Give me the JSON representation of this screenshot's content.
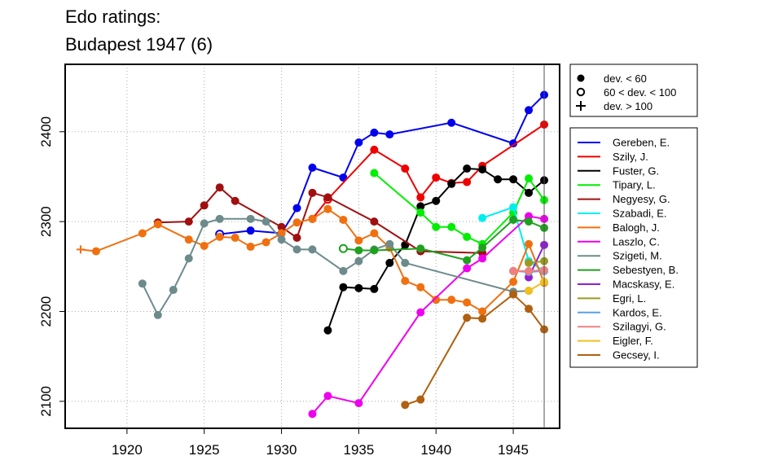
{
  "chart_data": {
    "type": "line",
    "title_lines": [
      "Edo ratings:",
      "Budapest 1947 (6)"
    ],
    "xlim": [
      1916,
      1948
    ],
    "ylim": [
      2070,
      2475
    ],
    "x_ticks": [
      1920,
      1925,
      1930,
      1935,
      1940,
      1945
    ],
    "y_ticks": [
      2100,
      2200,
      2300,
      2400
    ],
    "grid": true,
    "vline_x": 1947,
    "deviation_legend": {
      "placement": "top-right",
      "entries": [
        {
          "marker": "filled-circle",
          "label": "dev. < 60"
        },
        {
          "marker": "open-circle",
          "label": "60 < dev. < 100"
        },
        {
          "marker": "plus",
          "label": "dev. > 100"
        }
      ]
    },
    "series": [
      {
        "name": "Gereben, E.",
        "color": "#0000ee",
        "points": [
          [
            1926,
            2286,
            "o"
          ],
          [
            1928,
            2290,
            "f"
          ],
          [
            1930,
            2287,
            "f"
          ],
          [
            1931,
            2315,
            "f"
          ],
          [
            1932,
            2360,
            "f"
          ],
          [
            1934,
            2349,
            "f"
          ],
          [
            1935,
            2388,
            "f"
          ],
          [
            1936,
            2399,
            "f"
          ],
          [
            1937,
            2397,
            "f"
          ],
          [
            1941,
            2410,
            "f"
          ],
          [
            1945,
            2387,
            "f"
          ],
          [
            1946,
            2424,
            "f"
          ],
          [
            1947,
            2441,
            "f"
          ]
        ]
      },
      {
        "name": "Szily, J.",
        "color": "#ee0000",
        "points": [
          [
            1932,
            2303,
            "f"
          ],
          [
            1933,
            2325,
            "o"
          ],
          [
            1936,
            2380,
            "f"
          ],
          [
            1938,
            2359,
            "f"
          ],
          [
            1939,
            2327,
            "f"
          ],
          [
            1940,
            2349,
            "f"
          ],
          [
            1941,
            2343,
            "f"
          ],
          [
            1942,
            2344,
            "f"
          ],
          [
            1943,
            2362,
            "f"
          ],
          [
            1947,
            2408,
            "f"
          ]
        ]
      },
      {
        "name": "Fuster, G.",
        "color": "#000000",
        "points": [
          [
            1933,
            2179,
            "f"
          ],
          [
            1934,
            2227,
            "f"
          ],
          [
            1935,
            2226,
            "f"
          ],
          [
            1936,
            2225,
            "f"
          ],
          [
            1937,
            2254,
            "f"
          ],
          [
            1938,
            2274,
            "f"
          ],
          [
            1939,
            2317,
            "f"
          ],
          [
            1940,
            2323,
            "f"
          ],
          [
            1941,
            2342,
            "f"
          ],
          [
            1942,
            2359,
            "f"
          ],
          [
            1943,
            2358,
            "f"
          ],
          [
            1944,
            2347,
            "f"
          ],
          [
            1945,
            2347,
            "f"
          ],
          [
            1946,
            2332,
            "f"
          ],
          [
            1947,
            2346,
            "f"
          ]
        ]
      },
      {
        "name": "Tipary, L.",
        "color": "#00ee00",
        "points": [
          [
            1936,
            2354,
            "f"
          ],
          [
            1939,
            2310,
            "f"
          ],
          [
            1940,
            2294,
            "f"
          ],
          [
            1941,
            2294,
            "f"
          ],
          [
            1942,
            2283,
            "f"
          ],
          [
            1943,
            2275,
            "f"
          ],
          [
            1945,
            2310,
            "f"
          ],
          [
            1946,
            2348,
            "f"
          ],
          [
            1947,
            2324,
            "f"
          ]
        ]
      },
      {
        "name": "Negyesy, G.",
        "color": "#a01010",
        "points": [
          [
            1922,
            2299,
            "f"
          ],
          [
            1924,
            2300,
            "f"
          ],
          [
            1925,
            2318,
            "f"
          ],
          [
            1926,
            2338,
            "f"
          ],
          [
            1927,
            2323,
            "f"
          ],
          [
            1930,
            2294,
            "f"
          ],
          [
            1931,
            2282,
            "f"
          ],
          [
            1932,
            2332,
            "f"
          ],
          [
            1933,
            2327,
            "f"
          ],
          [
            1936,
            2300,
            "f"
          ],
          [
            1939,
            2267,
            "f"
          ],
          [
            1943,
            2265,
            "f"
          ]
        ]
      },
      {
        "name": "Szabadi, E.",
        "color": "#00eeee",
        "points": [
          [
            1943,
            2304,
            "f"
          ],
          [
            1945,
            2316,
            "f"
          ],
          [
            1946,
            2256,
            "f"
          ],
          [
            1947,
            2245,
            "f"
          ]
        ]
      },
      {
        "name": "Balogh, J.",
        "color": "#f07010",
        "points": [
          [
            1917,
            2269,
            "p"
          ],
          [
            1918,
            2267,
            "f"
          ],
          [
            1921,
            2287,
            "f"
          ],
          [
            1922,
            2297,
            "f"
          ],
          [
            1924,
            2280,
            "f"
          ],
          [
            1925,
            2273,
            "f"
          ],
          [
            1926,
            2283,
            "f"
          ],
          [
            1927,
            2282,
            "f"
          ],
          [
            1928,
            2272,
            "f"
          ],
          [
            1929,
            2277,
            "f"
          ],
          [
            1930,
            2287,
            "f"
          ],
          [
            1931,
            2299,
            "f"
          ],
          [
            1932,
            2303,
            "f"
          ],
          [
            1933,
            2314,
            "f"
          ],
          [
            1934,
            2302,
            "f"
          ],
          [
            1935,
            2279,
            "f"
          ],
          [
            1936,
            2287,
            "f"
          ],
          [
            1937,
            2271,
            "f"
          ],
          [
            1938,
            2234,
            "f"
          ],
          [
            1939,
            2227,
            "f"
          ],
          [
            1940,
            2213,
            "f"
          ],
          [
            1941,
            2213,
            "f"
          ],
          [
            1942,
            2210,
            "f"
          ],
          [
            1943,
            2200,
            "f"
          ],
          [
            1945,
            2233,
            "f"
          ],
          [
            1946,
            2275,
            "f"
          ],
          [
            1947,
            2232,
            "f"
          ]
        ]
      },
      {
        "name": "Laszlo, C.",
        "color": "#ee00ee",
        "points": [
          [
            1932,
            2086,
            "f"
          ],
          [
            1933,
            2106,
            "f"
          ],
          [
            1935,
            2098,
            "f"
          ],
          [
            1939,
            2199,
            "f"
          ],
          [
            1942,
            2248,
            "f"
          ],
          [
            1943,
            2259,
            "f"
          ],
          [
            1946,
            2306,
            "f"
          ],
          [
            1947,
            2303,
            "f"
          ]
        ]
      },
      {
        "name": "Szigeti, M.",
        "color": "#6e8b8b",
        "points": [
          [
            1921,
            2231,
            "f"
          ],
          [
            1922,
            2196,
            "f"
          ],
          [
            1923,
            2224,
            "f"
          ],
          [
            1924,
            2259,
            "f"
          ],
          [
            1925,
            2298,
            "f"
          ],
          [
            1926,
            2303,
            "f"
          ],
          [
            1928,
            2303,
            "f"
          ],
          [
            1929,
            2300,
            "f"
          ],
          [
            1930,
            2280,
            "f"
          ],
          [
            1931,
            2269,
            "f"
          ],
          [
            1932,
            2269,
            "f"
          ],
          [
            1934,
            2245,
            "f"
          ],
          [
            1935,
            2256,
            "f"
          ],
          [
            1936,
            2269,
            "f"
          ],
          [
            1937,
            2275,
            "f"
          ],
          [
            1938,
            2254,
            "f"
          ],
          [
            1945,
            2222,
            "f"
          ],
          [
            1946,
            2223,
            "f"
          ]
        ]
      },
      {
        "name": "Sebestyen, B.",
        "color": "#20a020",
        "points": [
          [
            1934,
            2270,
            "o"
          ],
          [
            1935,
            2268,
            "f"
          ],
          [
            1936,
            2268,
            "f"
          ],
          [
            1939,
            2270,
            "f"
          ],
          [
            1942,
            2257,
            "f"
          ],
          [
            1943,
            2271,
            "f"
          ],
          [
            1945,
            2302,
            "f"
          ],
          [
            1946,
            2300,
            "f"
          ],
          [
            1947,
            2293,
            "f"
          ]
        ]
      },
      {
        "name": "Macskasy, E.",
        "color": "#9020d0",
        "points": [
          [
            1946,
            2238,
            "f"
          ],
          [
            1947,
            2274,
            "f"
          ]
        ]
      },
      {
        "name": "Egri, L.",
        "color": "#9a9a20",
        "points": [
          [
            1946,
            2254,
            "f"
          ],
          [
            1947,
            2256,
            "f"
          ]
        ]
      },
      {
        "name": "Kardos, E.",
        "color": "#5ba0e0",
        "points": [
          [
            1945,
            2245,
            "f"
          ],
          [
            1946,
            2244,
            "f"
          ],
          [
            1947,
            2245,
            "f"
          ]
        ]
      },
      {
        "name": "Szilagyi, G.",
        "color": "#f08080",
        "points": [
          [
            1945,
            2245,
            "f"
          ],
          [
            1946,
            2245,
            "f"
          ],
          [
            1947,
            2246,
            "f"
          ]
        ]
      },
      {
        "name": "Eigler, F.",
        "color": "#f0c020",
        "points": [
          [
            1946,
            2223,
            "f"
          ],
          [
            1947,
            2233,
            "f"
          ]
        ]
      },
      {
        "name": "Gecsey, I.",
        "color": "#b06010",
        "points": [
          [
            1938,
            2096,
            "f"
          ],
          [
            1939,
            2102,
            "f"
          ],
          [
            1942,
            2193,
            "f"
          ],
          [
            1943,
            2192,
            "f"
          ],
          [
            1945,
            2219,
            "f"
          ],
          [
            1946,
            2203,
            "f"
          ],
          [
            1947,
            2180,
            "f"
          ]
        ]
      }
    ]
  }
}
